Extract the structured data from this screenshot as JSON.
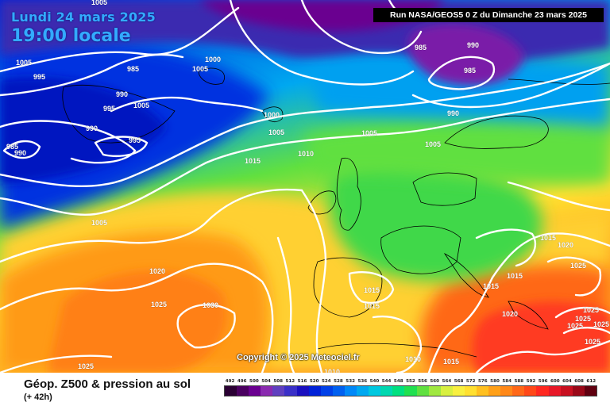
{
  "header": {
    "date": "Lundi 24 mars 2025",
    "time": "19:00 locale",
    "run": "Run NASA/GEOS5 0 Z du Dimanche 23 mars 2025"
  },
  "copyright": "Copyright © 2025 Meteociel.fr",
  "footer": {
    "title": "Géop. Z500 & pression au sol",
    "subtitle": "(+ 42h)"
  },
  "legend": {
    "levels": [
      "492",
      "496",
      "500",
      "504",
      "508",
      "512",
      "516",
      "520",
      "524",
      "528",
      "532",
      "536",
      "540",
      "544",
      "548",
      "552",
      "556",
      "560",
      "564",
      "568",
      "572",
      "576",
      "580",
      "584",
      "588",
      "592",
      "596",
      "600",
      "604",
      "608",
      "612"
    ],
    "colors": [
      "#2a0033",
      "#4a0060",
      "#6a0090",
      "#8a2ab0",
      "#6040c0",
      "#3a30c8",
      "#1a10c0",
      "#0022d8",
      "#0040e8",
      "#0060f0",
      "#0088f8",
      "#00a8f0",
      "#00c8e0",
      "#00d8b0",
      "#00e080",
      "#20e050",
      "#60e040",
      "#a0e840",
      "#d8f040",
      "#f8f040",
      "#ffe030",
      "#ffc020",
      "#ffa018",
      "#ff8818",
      "#ff6818",
      "#ff4818",
      "#ff2820",
      "#e81828",
      "#c81020",
      "#9a0818",
      "#600010"
    ]
  },
  "isobars": [
    "1005",
    "995",
    "985",
    "1005",
    "1005",
    "1000",
    "985",
    "990",
    "990",
    "995",
    "995",
    "990",
    "1005",
    "985",
    "990",
    "985",
    "990",
    "1000",
    "1005",
    "1010",
    "1015",
    "1005",
    "1005",
    "1005",
    "1020",
    "1025",
    "1030",
    "1015",
    "1015",
    "1015",
    "1020",
    "1025",
    "1025",
    "1015",
    "1015",
    "1020",
    "1025",
    "1025",
    "1025",
    "1025",
    "1010",
    "1010",
    "1025"
  ]
}
